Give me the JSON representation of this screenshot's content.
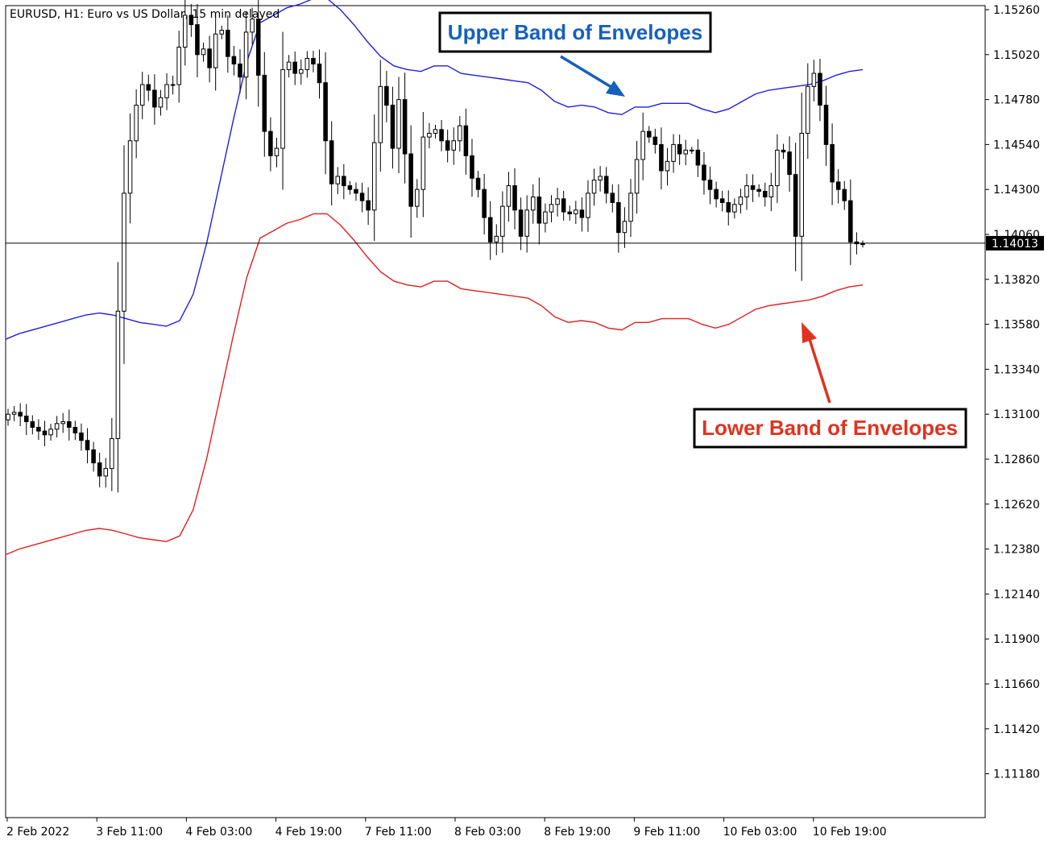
{
  "chart_title": "EURUSD, H1:  Euro vs US Dollar, 15 min delayed",
  "chart_data": {
    "type": "candlestick",
    "symbol": "EURUSD",
    "timeframe": "H1",
    "ylim": [
      1.1102,
      1.153
    ],
    "y_ticks": [
      "1.15260",
      "1.15020",
      "1.14780",
      "1.14540",
      "1.14300",
      "1.14060",
      "1.13820",
      "1.13580",
      "1.13340",
      "1.13100",
      "1.12860",
      "1.12620",
      "1.12380",
      "1.12140",
      "1.11900",
      "1.11660",
      "1.11420",
      "1.11180"
    ],
    "x_ticks": [
      "2 Feb 2022",
      "3 Feb 11:00",
      "4 Feb 03:00",
      "4 Feb 19:00",
      "7 Feb 11:00",
      "8 Feb 03:00",
      "8 Feb 19:00",
      "9 Feb 11:00",
      "10 Feb 03:00",
      "10 Feb 19:00"
    ],
    "current_price": "1.14013",
    "colors": {
      "candles": "#000000",
      "upper_band": "#1f1fe0",
      "lower_band": "#e01f1f",
      "price_line": "#000000"
    },
    "closes": [
      1.131,
      1.1311,
      1.1309,
      1.1306,
      1.1303,
      1.1301,
      1.1299,
      1.1302,
      1.1305,
      1.1306,
      1.1303,
      1.13,
      1.1296,
      1.1291,
      1.1284,
      1.1277,
      1.1281,
      1.1297,
      1.1365,
      1.1428,
      1.1456,
      1.1475,
      1.1486,
      1.1483,
      1.1474,
      1.1479,
      1.1486,
      1.1486,
      1.1506,
      1.1523,
      1.1518,
      1.1502,
      1.1505,
      1.1495,
      1.1513,
      1.1515,
      1.1501,
      1.1497,
      1.149,
      1.1514,
      1.1521,
      1.1491,
      1.1461,
      1.1448,
      1.1452,
      1.1494,
      1.1498,
      1.1492,
      1.1494,
      1.15,
      1.1497,
      1.1487,
      1.1456,
      1.1433,
      1.1437,
      1.1432,
      1.143,
      1.1428,
      1.1424,
      1.1419,
      1.1455,
      1.1485,
      1.1475,
      1.1452,
      1.1478,
      1.1449,
      1.1421,
      1.143,
      1.1458,
      1.146,
      1.1462,
      1.1456,
      1.1451,
      1.1456,
      1.1464,
      1.1448,
      1.1436,
      1.143,
      1.1415,
      1.1402,
      1.1405,
      1.1421,
      1.1432,
      1.1419,
      1.1405,
      1.1419,
      1.1426,
      1.1412,
      1.1418,
      1.1422,
      1.1425,
      1.1418,
      1.1417,
      1.1419,
      1.1415,
      1.1428,
      1.1435,
      1.1437,
      1.1428,
      1.1423,
      1.1407,
      1.1413,
      1.1428,
      1.1446,
      1.1461,
      1.1458,
      1.1454,
      1.144,
      1.1445,
      1.1454,
      1.1449,
      1.1451,
      1.1451,
      1.1443,
      1.1435,
      1.143,
      1.1425,
      1.1423,
      1.1418,
      1.1422,
      1.1426,
      1.1432,
      1.143,
      1.1429,
      1.1426,
      1.1432,
      1.1451,
      1.145,
      1.1438,
      1.1405,
      1.146,
      1.1485,
      1.1492,
      1.1475,
      1.1454,
      1.1434,
      1.143,
      1.1424,
      1.1402,
      1.1401,
      1.1401
    ],
    "upper_band": [
      1.135,
      1.1353,
      1.1355,
      1.1357,
      1.1359,
      1.1361,
      1.1363,
      1.1364,
      1.1363,
      1.1361,
      1.1359,
      1.1358,
      1.1357,
      1.136,
      1.1374,
      1.1401,
      1.1434,
      1.1467,
      1.1498,
      1.1519,
      1.1523,
      1.1527,
      1.1529,
      1.1532,
      1.1532,
      1.1526,
      1.1518,
      1.1509,
      1.1501,
      1.1496,
      1.1494,
      1.1493,
      1.1496,
      1.1496,
      1.1492,
      1.1491,
      1.149,
      1.1489,
      1.1488,
      1.1487,
      1.1483,
      1.1477,
      1.1474,
      1.1475,
      1.1474,
      1.1471,
      1.147,
      1.1474,
      1.1474,
      1.1476,
      1.1476,
      1.1476,
      1.1473,
      1.1471,
      1.1473,
      1.1477,
      1.1481,
      1.1483,
      1.1484,
      1.1485,
      1.1486,
      1.1488,
      1.1491,
      1.1493,
      1.1494
    ],
    "lower_band": [
      1.1235,
      1.1238,
      1.124,
      1.1242,
      1.1244,
      1.1246,
      1.1248,
      1.1249,
      1.1248,
      1.1246,
      1.1244,
      1.1243,
      1.1242,
      1.1245,
      1.1259,
      1.1286,
      1.1319,
      1.1352,
      1.1383,
      1.1404,
      1.1408,
      1.1412,
      1.1414,
      1.1417,
      1.1417,
      1.1411,
      1.1403,
      1.1394,
      1.1386,
      1.1381,
      1.1379,
      1.1378,
      1.1381,
      1.1381,
      1.1377,
      1.1376,
      1.1375,
      1.1374,
      1.1373,
      1.1372,
      1.1368,
      1.1362,
      1.1359,
      1.136,
      1.1359,
      1.1356,
      1.1355,
      1.1359,
      1.1359,
      1.1361,
      1.1361,
      1.1361,
      1.1358,
      1.1356,
      1.1358,
      1.1362,
      1.1366,
      1.1368,
      1.1369,
      1.137,
      1.1371,
      1.1373,
      1.1376,
      1.1378,
      1.1379
    ],
    "annotations": [
      {
        "text": "Upper Band of Envelopes",
        "color": "#1560bd"
      },
      {
        "text": "Lower Band of Envelopes",
        "color": "#e0321f"
      }
    ]
  }
}
